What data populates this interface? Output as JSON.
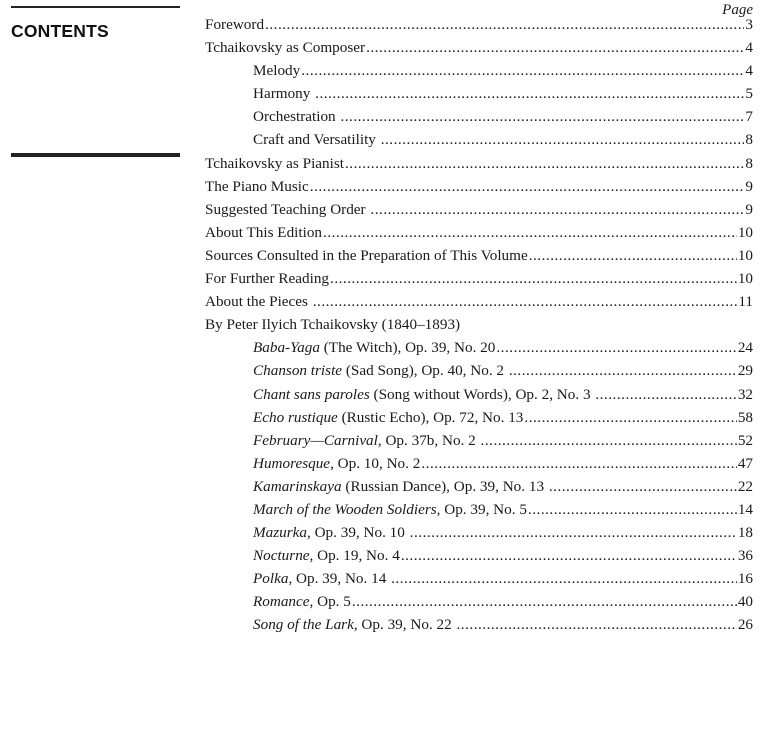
{
  "heading": "CONTENTS",
  "page_label": "Page",
  "entries": [
    {
      "italic": "",
      "text": "Foreword",
      "page": "3",
      "level": 0
    },
    {
      "italic": "",
      "text": "Tchaikovsky as Composer",
      "page": "4",
      "level": 0
    },
    {
      "italic": "",
      "text": "Melody",
      "page": "4",
      "level": 1
    },
    {
      "italic": "",
      "text": "Harmony ",
      "page": "5",
      "level": 1
    },
    {
      "italic": "",
      "text": "Orchestration ",
      "page": "7",
      "level": 1
    },
    {
      "italic": "",
      "text": "Craft and Versatility ",
      "page": "8",
      "level": 1
    },
    {
      "italic": "",
      "text": "Tchaikovsky as Pianist",
      "page": "8",
      "level": 0
    },
    {
      "italic": "",
      "text": "The Piano Music",
      "page": "9",
      "level": 0
    },
    {
      "italic": "",
      "text": "Suggested Teaching Order ",
      "page": "9",
      "level": 0
    },
    {
      "italic": "",
      "text": "About This Edition",
      "page": "10",
      "level": 0
    },
    {
      "italic": "",
      "text": "Sources Consulted in the Preparation of This Volume",
      "page": "10",
      "level": 0
    },
    {
      "italic": "",
      "text": "For Further Reading",
      "page": "10",
      "level": 0
    },
    {
      "italic": "",
      "text": "About the Pieces ",
      "page": "11",
      "level": 0
    },
    {
      "italic": "",
      "text": "By Peter Ilyich Tchaikovsky (1840–1893)",
      "page": "",
      "level": 0
    },
    {
      "italic": "Baba-Yaga",
      "text": " (The Witch), Op. 39, No. 20",
      "page": "24",
      "level": 1
    },
    {
      "italic": "Chanson triste",
      "text": " (Sad Song), Op. 40, No. 2 ",
      "page": "29",
      "level": 1
    },
    {
      "italic": "Chant sans paroles",
      "text": " (Song without Words), Op. 2, No. 3 ",
      "page": "32",
      "level": 1
    },
    {
      "italic": "Echo rustique",
      "text": " (Rustic Echo), Op. 72, No. 13",
      "page": "58",
      "level": 1
    },
    {
      "italic": "February—Carnival",
      "text": ", Op. 37b, No. 2 ",
      "page": "52",
      "level": 1
    },
    {
      "italic": "Humoresque",
      "text": ", Op. 10, No. 2",
      "page": "47",
      "level": 1
    },
    {
      "italic": "Kamarinskaya",
      "text": " (Russian Dance), Op. 39, No. 13 ",
      "page": "22",
      "level": 1
    },
    {
      "italic": "March of the Wooden Soldiers",
      "text": ", Op. 39, No. 5",
      "page": "14",
      "level": 1
    },
    {
      "italic": "Mazurka",
      "text": ", Op. 39, No. 10 ",
      "page": "18",
      "level": 1
    },
    {
      "italic": "Nocturne",
      "text": ", Op. 19, No. 4",
      "page": "36",
      "level": 1
    },
    {
      "italic": "Polka",
      "text": ", Op. 39, No. 14 ",
      "page": "16",
      "level": 1
    },
    {
      "italic": "Romance",
      "text": ", Op. 5",
      "page": "40",
      "level": 1
    },
    {
      "italic": "Song of the Lark",
      "text": ", Op. 39, No. 22 ",
      "page": "26",
      "level": 1
    }
  ]
}
